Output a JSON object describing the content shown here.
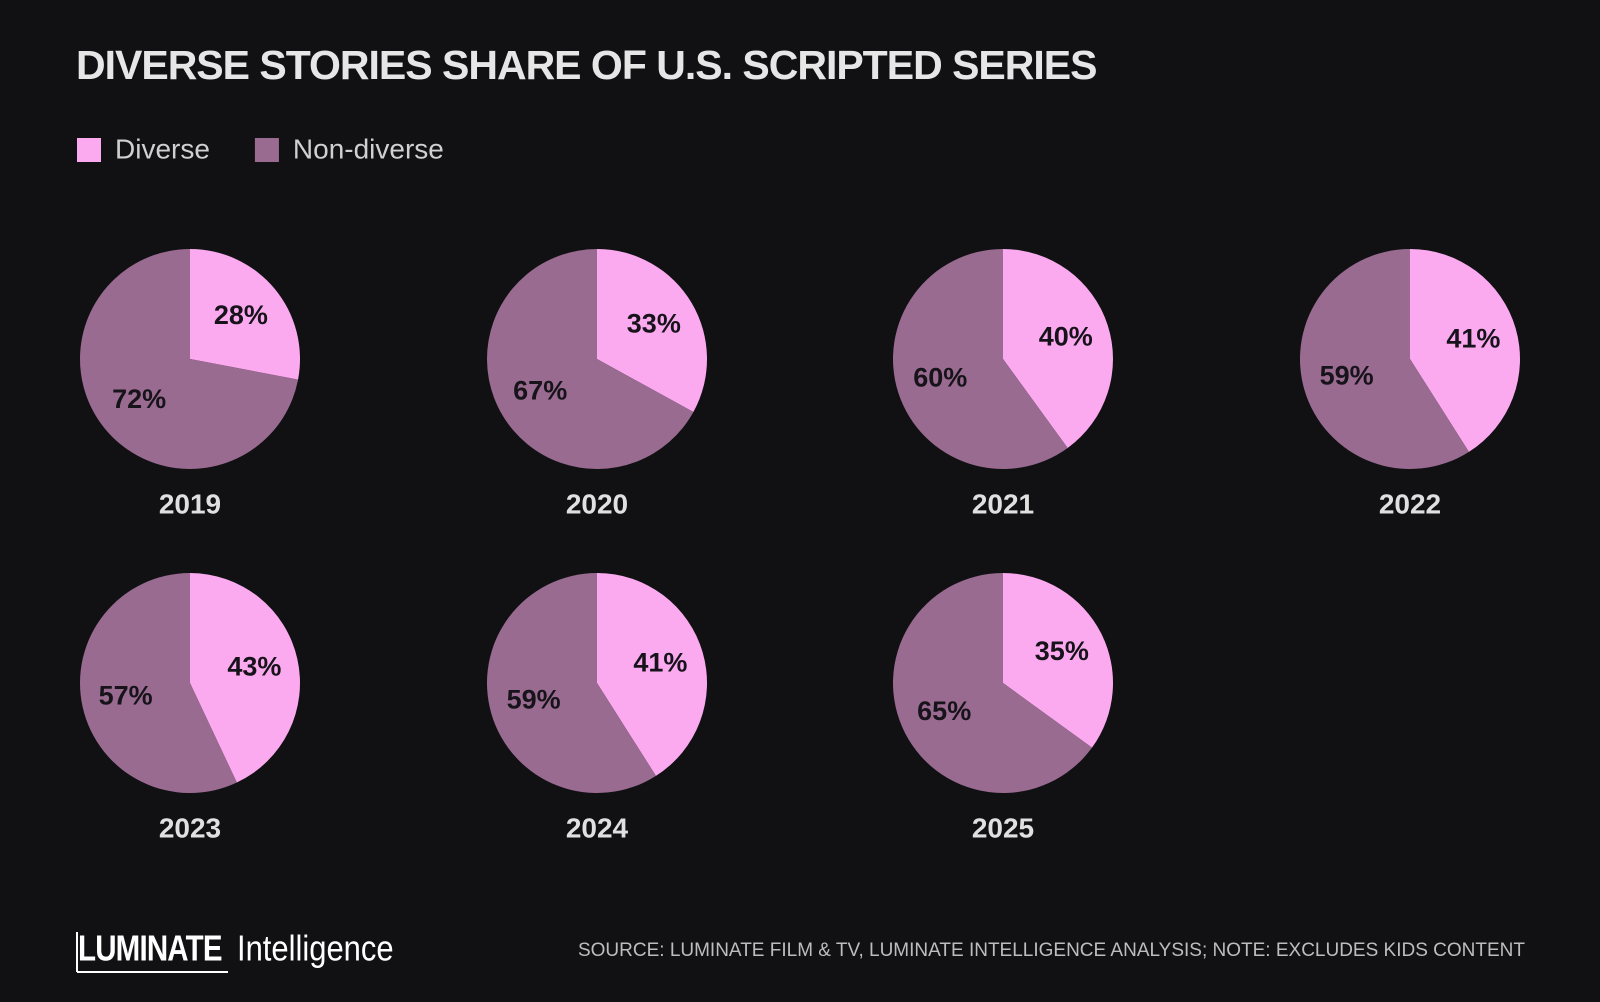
{
  "title": "DIVERSE STORIES SHARE OF U.S. SCRIPTED SERIES",
  "legend": [
    {
      "name": "Diverse",
      "color": "#fbaaf0"
    },
    {
      "name": "Non-diverse",
      "color": "#9a6b90"
    }
  ],
  "chart_data": [
    {
      "type": "pie",
      "title": "2019",
      "values": [
        28,
        72
      ],
      "value_labels": [
        "28%",
        "72%"
      ]
    },
    {
      "type": "pie",
      "title": "2020",
      "values": [
        33,
        67
      ],
      "value_labels": [
        "33%",
        "67%"
      ]
    },
    {
      "type": "pie",
      "title": "2021",
      "values": [
        40,
        60
      ],
      "value_labels": [
        "40%",
        "60%"
      ]
    },
    {
      "type": "pie",
      "title": "2022",
      "values": [
        41,
        59
      ],
      "value_labels": [
        "41%",
        "59%"
      ]
    },
    {
      "type": "pie",
      "title": "2023",
      "values": [
        43,
        57
      ],
      "value_labels": [
        "43%",
        "57%"
      ]
    },
    {
      "type": "pie",
      "title": "2024",
      "values": [
        41,
        59
      ],
      "value_labels": [
        "41%",
        "59%"
      ]
    },
    {
      "type": "pie",
      "title": "2025",
      "values": [
        35,
        65
      ],
      "value_labels": [
        "35%",
        "65%"
      ]
    }
  ],
  "footer": {
    "logo_brand": "LUMINATE",
    "logo_product": "Intelligence",
    "source": "SOURCE: LUMINATE FILM & TV, LUMINATE INTELLIGENCE ANALYSIS; NOTE: EXCLUDES KIDS CONTENT"
  }
}
